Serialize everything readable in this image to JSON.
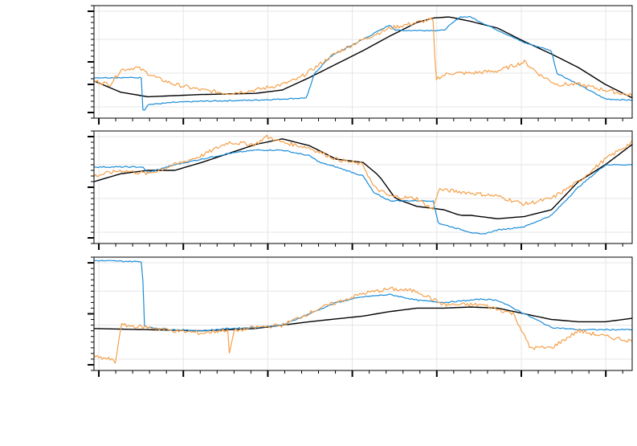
{
  "chart_data": [
    {
      "type": "line",
      "title": "",
      "xlabel": "",
      "ylabel": "",
      "xlim": [
        0,
        1
      ],
      "ylim": [
        0,
        1
      ],
      "grid": true,
      "colors": {
        "black": "#000000",
        "blue": "#1a8cd8",
        "orange": "#f5a04a"
      },
      "series": [
        {
          "color": "black",
          "x": [
            0,
            0.05,
            0.1,
            0.2,
            0.3,
            0.35,
            0.4,
            0.45,
            0.5,
            0.55,
            0.6,
            0.63,
            0.66,
            0.7,
            0.75,
            0.8,
            0.85,
            0.9,
            0.95,
            1.0
          ],
          "y": [
            0.33,
            0.23,
            0.19,
            0.21,
            0.22,
            0.25,
            0.36,
            0.48,
            0.6,
            0.73,
            0.85,
            0.89,
            0.9,
            0.86,
            0.8,
            0.68,
            0.57,
            0.45,
            0.3,
            0.18
          ]
        },
        {
          "color": "blue",
          "x": [
            0,
            0.09,
            0.091,
            0.1,
            0.15,
            0.2,
            0.3,
            0.35,
            0.395,
            0.41,
            0.44,
            0.5,
            0.55,
            0.56,
            0.6,
            0.65,
            0.68,
            0.7,
            0.72,
            0.8,
            0.85,
            0.86,
            0.9,
            0.95,
            1.0
          ],
          "y": [
            0.36,
            0.36,
            0.05,
            0.12,
            0.14,
            0.15,
            0.16,
            0.17,
            0.18,
            0.4,
            0.55,
            0.7,
            0.83,
            0.78,
            0.78,
            0.78,
            0.9,
            0.9,
            0.85,
            0.67,
            0.6,
            0.4,
            0.3,
            0.17,
            0.16
          ]
        },
        {
          "color": "orange",
          "x": [
            0,
            0.03,
            0.05,
            0.08,
            0.1,
            0.12,
            0.15,
            0.2,
            0.25,
            0.3,
            0.35,
            0.38,
            0.42,
            0.45,
            0.5,
            0.55,
            0.6,
            0.63,
            0.635,
            0.66,
            0.7,
            0.75,
            0.8,
            0.83,
            0.86,
            0.9,
            0.95,
            1.0
          ],
          "y": [
            0.33,
            0.3,
            0.43,
            0.45,
            0.4,
            0.35,
            0.3,
            0.25,
            0.22,
            0.25,
            0.3,
            0.35,
            0.48,
            0.58,
            0.7,
            0.8,
            0.85,
            0.88,
            0.35,
            0.4,
            0.4,
            0.42,
            0.5,
            0.38,
            0.3,
            0.3,
            0.25,
            0.2
          ]
        }
      ]
    },
    {
      "type": "line",
      "title": "",
      "xlabel": "",
      "ylabel": "",
      "xlim": [
        0,
        1
      ],
      "ylim": [
        0,
        1
      ],
      "grid": true,
      "colors": {
        "black": "#000000",
        "blue": "#1a8cd8",
        "orange": "#f5a04a"
      },
      "series": [
        {
          "color": "black",
          "x": [
            0,
            0.05,
            0.1,
            0.15,
            0.2,
            0.25,
            0.3,
            0.35,
            0.4,
            0.45,
            0.5,
            0.53,
            0.56,
            0.6,
            0.65,
            0.68,
            0.7,
            0.75,
            0.8,
            0.85,
            0.9,
            0.95,
            1.0
          ],
          "y": [
            0.55,
            0.62,
            0.65,
            0.65,
            0.72,
            0.8,
            0.88,
            0.93,
            0.87,
            0.75,
            0.72,
            0.6,
            0.4,
            0.33,
            0.3,
            0.25,
            0.25,
            0.22,
            0.24,
            0.3,
            0.55,
            0.7,
            0.88
          ]
        },
        {
          "color": "blue",
          "x": [
            0,
            0.05,
            0.09,
            0.1,
            0.15,
            0.2,
            0.25,
            0.3,
            0.35,
            0.4,
            0.42,
            0.45,
            0.5,
            0.52,
            0.55,
            0.6,
            0.63,
            0.64,
            0.7,
            0.72,
            0.75,
            0.8,
            0.85,
            0.9,
            0.95,
            1.0
          ],
          "y": [
            0.68,
            0.68,
            0.68,
            0.63,
            0.7,
            0.75,
            0.8,
            0.83,
            0.83,
            0.78,
            0.72,
            0.68,
            0.6,
            0.45,
            0.38,
            0.38,
            0.38,
            0.18,
            0.1,
            0.08,
            0.12,
            0.15,
            0.25,
            0.5,
            0.7,
            0.7
          ]
        },
        {
          "color": "orange",
          "x": [
            0,
            0.05,
            0.1,
            0.15,
            0.2,
            0.25,
            0.3,
            0.32,
            0.35,
            0.4,
            0.45,
            0.5,
            0.52,
            0.55,
            0.6,
            0.63,
            0.64,
            0.7,
            0.75,
            0.8,
            0.85,
            0.9,
            0.95,
            1.0
          ],
          "y": [
            0.6,
            0.65,
            0.62,
            0.7,
            0.78,
            0.9,
            0.88,
            0.95,
            0.9,
            0.85,
            0.75,
            0.7,
            0.5,
            0.42,
            0.4,
            0.3,
            0.48,
            0.45,
            0.42,
            0.35,
            0.4,
            0.55,
            0.75,
            0.9
          ]
        }
      ]
    },
    {
      "type": "line",
      "title": "",
      "xlabel": "",
      "ylabel": "",
      "xlim": [
        0,
        1
      ],
      "ylim": [
        0,
        1
      ],
      "grid": true,
      "colors": {
        "black": "#000000",
        "blue": "#1a8cd8",
        "orange": "#f5a04a"
      },
      "series": [
        {
          "color": "black",
          "x": [
            0,
            0.1,
            0.2,
            0.3,
            0.4,
            0.5,
            0.55,
            0.6,
            0.65,
            0.7,
            0.75,
            0.8,
            0.85,
            0.9,
            0.95,
            1.0
          ],
          "y": [
            0.37,
            0.36,
            0.35,
            0.37,
            0.43,
            0.48,
            0.52,
            0.55,
            0.55,
            0.56,
            0.55,
            0.5,
            0.45,
            0.43,
            0.43,
            0.46
          ]
        },
        {
          "color": "blue",
          "x": [
            0,
            0.09,
            0.093,
            0.1,
            0.15,
            0.2,
            0.25,
            0.3,
            0.35,
            0.45,
            0.5,
            0.55,
            0.6,
            0.65,
            0.7,
            0.72,
            0.75,
            0.8,
            0.85,
            0.9,
            0.95,
            1.0
          ],
          "y": [
            0.97,
            0.96,
            0.4,
            0.38,
            0.36,
            0.35,
            0.37,
            0.38,
            0.4,
            0.6,
            0.65,
            0.67,
            0.62,
            0.6,
            0.62,
            0.63,
            0.62,
            0.5,
            0.38,
            0.36,
            0.36,
            0.36
          ]
        },
        {
          "color": "orange",
          "x": [
            0,
            0.03,
            0.04,
            0.05,
            0.1,
            0.15,
            0.2,
            0.25,
            0.248,
            0.26,
            0.3,
            0.35,
            0.42,
            0.5,
            0.55,
            0.6,
            0.65,
            0.72,
            0.78,
            0.81,
            0.85,
            0.9,
            0.95,
            1.0
          ],
          "y": [
            0.12,
            0.1,
            0.07,
            0.4,
            0.38,
            0.35,
            0.33,
            0.36,
            0.05,
            0.35,
            0.38,
            0.4,
            0.55,
            0.68,
            0.72,
            0.7,
            0.58,
            0.58,
            0.5,
            0.2,
            0.2,
            0.35,
            0.3,
            0.26
          ]
        }
      ]
    }
  ]
}
